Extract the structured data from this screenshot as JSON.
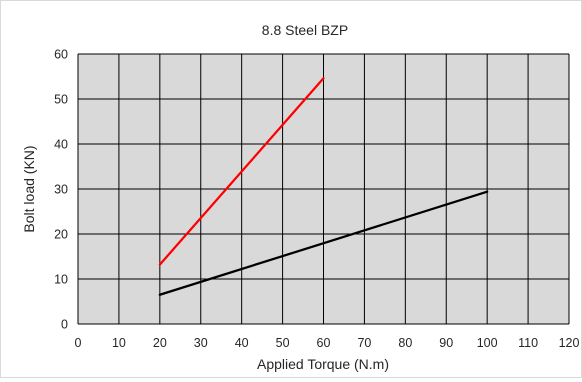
{
  "chart_data": {
    "type": "line",
    "title": "8.8 Steel BZP",
    "xlabel": "Applied Torque (N.m)",
    "ylabel": "Bolt load (KN)",
    "xlim": [
      0,
      120
    ],
    "ylim": [
      0,
      60
    ],
    "xticks": [
      0,
      10,
      20,
      30,
      40,
      50,
      60,
      70,
      80,
      90,
      100,
      110,
      120
    ],
    "yticks": [
      0,
      10,
      20,
      30,
      40,
      50,
      60
    ],
    "grid": true,
    "plot_background": "#d9d9d9",
    "grid_color": "#000000",
    "series": [
      {
        "color": "#ff0000",
        "x": [
          20,
          60
        ],
        "y": [
          13.2,
          54.6
        ]
      },
      {
        "color": "#000000",
        "x": [
          20,
          100
        ],
        "y": [
          6.5,
          29.4
        ]
      }
    ]
  }
}
